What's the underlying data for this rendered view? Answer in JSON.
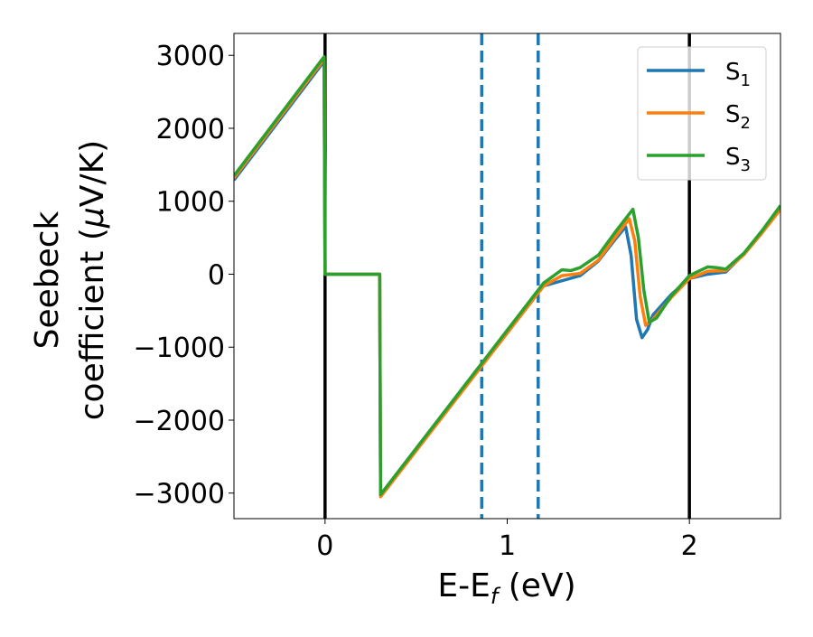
{
  "chart_data": {
    "type": "line",
    "xlabel_base": "E-E",
    "xlabel_sub": "f",
    "xlabel_tail": " (eV)",
    "ylabel_line1": "Seebeck",
    "ylabel_line2_pre": "coefficient  (",
    "ylabel_line2_mu": "μ",
    "ylabel_line2_post": "V/K)",
    "xlim": [
      -0.5,
      2.5
    ],
    "ylim": [
      -3350,
      3300
    ],
    "xticks": [
      0,
      1,
      2
    ],
    "xtick_labels": [
      "0",
      "1",
      "2"
    ],
    "yticks": [
      3000,
      2000,
      1000,
      0,
      -1000,
      -2000,
      -3000
    ],
    "ytick_labels": [
      "3000",
      "2000",
      "1000",
      "0",
      "−1000",
      "−2000",
      "−3000"
    ],
    "grid": false,
    "legend_position": "top-right",
    "vlines": [
      {
        "x": 0,
        "style": "solid",
        "color": "#000000"
      },
      {
        "x": 2.0,
        "style": "solid",
        "color": "#000000"
      },
      {
        "x": 0.86,
        "style": "dashed",
        "color": "#1f77b4"
      },
      {
        "x": 1.17,
        "style": "dashed",
        "color": "#1f77b4"
      }
    ],
    "series": [
      {
        "name_base": "S",
        "name_sub": "1",
        "color": "#1f77b4",
        "x": [
          -0.5,
          -0.005,
          0.0,
          0.3,
          0.305,
          1.2,
          1.3,
          1.4,
          1.5,
          1.6,
          1.65,
          1.68,
          1.71,
          1.74,
          1.77,
          1.8,
          1.9,
          2.0,
          2.1,
          2.2,
          2.3,
          2.4,
          2.5
        ],
        "y": [
          1290,
          2920,
          0,
          0,
          -3040,
          -160,
          -90,
          -20,
          180,
          500,
          650,
          260,
          -620,
          -870,
          -760,
          -560,
          -280,
          -60,
          0,
          30,
          280,
          580,
          900
        ]
      },
      {
        "name_base": "S",
        "name_sub": "2",
        "color": "#ff7f0e",
        "x": [
          -0.5,
          -0.005,
          0.0,
          0.3,
          0.305,
          1.2,
          1.3,
          1.4,
          1.5,
          1.6,
          1.67,
          1.7,
          1.73,
          1.76,
          1.8,
          1.9,
          2.0,
          2.1,
          2.2,
          2.3,
          2.4,
          2.5
        ],
        "y": [
          1320,
          2950,
          0,
          0,
          -3050,
          -160,
          -20,
          10,
          190,
          530,
          760,
          460,
          -310,
          -700,
          -620,
          -320,
          -60,
          40,
          50,
          270,
          570,
          890
        ]
      },
      {
        "name_base": "S",
        "name_sub": "3",
        "color": "#2ca02c",
        "x": [
          -0.5,
          -0.005,
          0.0,
          0.3,
          0.305,
          1.2,
          1.3,
          1.35,
          1.4,
          1.5,
          1.6,
          1.69,
          1.72,
          1.75,
          1.78,
          1.82,
          1.9,
          2.0,
          2.1,
          2.15,
          2.2,
          2.3,
          2.4,
          2.5
        ],
        "y": [
          1350,
          2980,
          0,
          0,
          -3020,
          -120,
          60,
          50,
          90,
          260,
          600,
          890,
          500,
          -220,
          -660,
          -600,
          -300,
          -20,
          100,
          90,
          70,
          290,
          600,
          940
        ]
      }
    ]
  }
}
